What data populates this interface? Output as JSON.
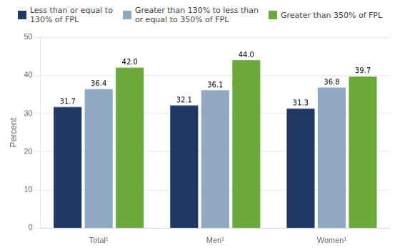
{
  "chart_data": {
    "type": "bar",
    "categories": [
      "Total¹",
      "Men¹",
      "Women¹"
    ],
    "series": [
      {
        "name": "Less than or equal to\n130% of FPL",
        "color": "#1f3864",
        "values": [
          31.7,
          32.1,
          31.3
        ]
      },
      {
        "name": "Greater than 130% to less than\nor equal to 350% of FPL",
        "color": "#8fa9c0",
        "values": [
          36.4,
          36.1,
          36.8
        ]
      },
      {
        "name": "Greater than 350% of FPL",
        "color": "#6aaa3a",
        "values": [
          42.0,
          44.0,
          39.7
        ],
        "value_labels": [
          "42.0",
          "44.0",
          "39.7"
        ]
      }
    ],
    "ylabel": "Percent",
    "ylim": [
      0,
      50
    ],
    "yticks": [
      0,
      10,
      20,
      30,
      40,
      50
    ],
    "grid": true,
    "legend": "top",
    "data_labels": true
  }
}
